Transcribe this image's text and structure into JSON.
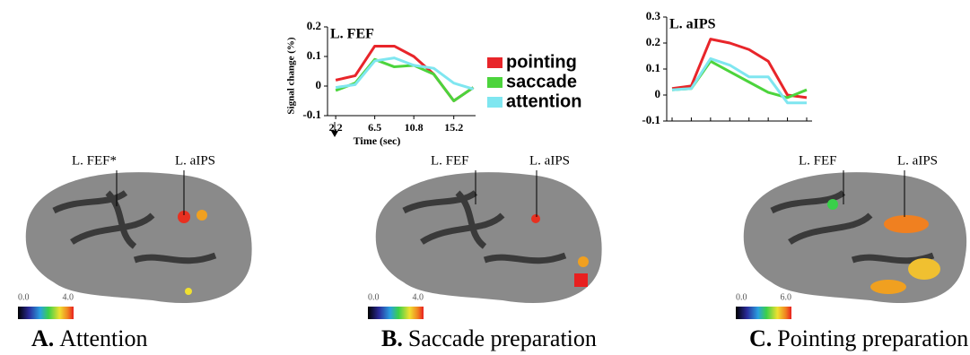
{
  "chart_data": [
    {
      "type": "line",
      "title": "L. FEF",
      "ylabel": "Signal change (%)",
      "xlabel": "Time (sec)",
      "x": [
        2.2,
        4.35,
        6.5,
        8.65,
        10.8,
        13,
        15.2,
        17.35
      ],
      "xlim": [
        1.3,
        17.6
      ],
      "xticks": [
        2.2,
        6.5,
        10.8,
        15.2
      ],
      "ylim": [
        -0.1,
        0.2
      ],
      "yticks": [
        -0.1,
        0,
        0.1,
        0.2
      ],
      "series": [
        {
          "name": "pointing",
          "color": "#e8252a",
          "values": [
            0.02,
            0.035,
            0.135,
            0.135,
            0.1,
            0.04,
            -0.05,
            -0.005
          ]
        },
        {
          "name": "saccade",
          "color": "#4cd43c",
          "values": [
            -0.015,
            0.01,
            0.09,
            0.065,
            0.07,
            0.04,
            -0.05,
            -0.005
          ]
        },
        {
          "name": "attention",
          "color": "#7fe6f0",
          "values": [
            -0.005,
            0.005,
            0.085,
            0.095,
            0.07,
            0.06,
            0.01,
            -0.01
          ]
        }
      ]
    },
    {
      "type": "line",
      "title": "L. aIPS",
      "categories": [
        null,
        null,
        null,
        null,
        null,
        null,
        null,
        null
      ],
      "ylim": [
        -0.1,
        0.3
      ],
      "yticks": [
        -0.1,
        0,
        0.1,
        0.2,
        0.3
      ],
      "series": [
        {
          "color": "#e8252a",
          "values": [
            0.025,
            0.035,
            0.215,
            0.2,
            0.175,
            0.13,
            0.0,
            -0.01
          ]
        },
        {
          "color": "#4cd43c",
          "values": [
            0.02,
            0.025,
            0.13,
            0.09,
            0.05,
            0.01,
            -0.01,
            0.02
          ]
        },
        {
          "color": "#7fe6f0",
          "values": [
            0.02,
            0.025,
            0.14,
            0.115,
            0.07,
            0.07,
            -0.03,
            -0.03
          ]
        }
      ]
    }
  ],
  "panels": [
    {
      "letter": "A.",
      "title": "Attention",
      "colorbar": [
        "0.0",
        "4.0"
      ],
      "annotations": [
        "L. FEF*",
        "L. aIPS"
      ]
    },
    {
      "letter": "B.",
      "title": "Saccade preparation",
      "colorbar": [
        "0.0",
        "4.0"
      ],
      "annotations": [
        "L. FEF",
        "L. aIPS"
      ]
    },
    {
      "letter": "C.",
      "title": "Pointing preparation",
      "colorbar": [
        "0.0",
        "6.0"
      ],
      "annotations": [
        "L. FEF",
        "L. aIPS"
      ]
    }
  ]
}
